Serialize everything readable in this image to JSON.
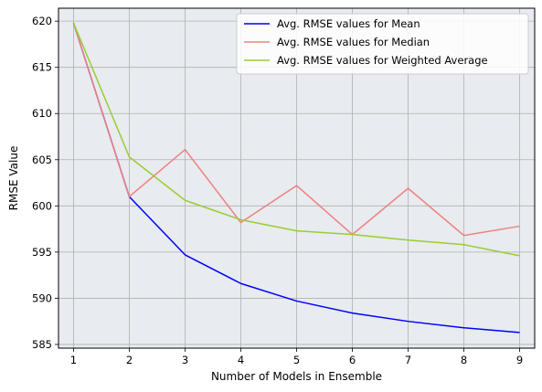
{
  "chart_data": {
    "type": "line",
    "title": "",
    "xlabel": "Number of Models in Ensemble",
    "ylabel": "RMSE Value",
    "x": [
      1,
      2,
      3,
      4,
      5,
      6,
      7,
      8,
      9
    ],
    "xticks": [
      "1",
      "2",
      "3",
      "4",
      "5",
      "6",
      "7",
      "8",
      "9"
    ],
    "xlim": [
      0.73,
      9.27
    ],
    "yticks": [
      585,
      590,
      595,
      600,
      605,
      610,
      615,
      620
    ],
    "ytick_labels": [
      "585",
      "590",
      "595",
      "600",
      "605",
      "610",
      "615",
      "620"
    ],
    "ylim": [
      584.6,
      621.4
    ],
    "grid": true,
    "legend_position": "upper-right",
    "series": [
      {
        "name": "Avg. RMSE values for Mean",
        "color": "#0000ff",
        "values": [
          619.8,
          601.0,
          594.7,
          591.6,
          589.7,
          588.4,
          587.5,
          586.8,
          586.3
        ]
      },
      {
        "name": "Avg. RMSE values for Median",
        "color": "#f08080",
        "values": [
          619.8,
          601.0,
          606.1,
          598.2,
          602.2,
          596.9,
          601.9,
          596.8,
          597.8
        ]
      },
      {
        "name": "Avg. RMSE values for Weighted Average",
        "color": "#9acd32",
        "values": [
          619.8,
          605.3,
          600.6,
          598.5,
          597.3,
          596.9,
          596.3,
          595.8,
          594.6
        ]
      }
    ],
    "plot_background": "#e8ebef",
    "grid_color": "#b0b0b0"
  }
}
